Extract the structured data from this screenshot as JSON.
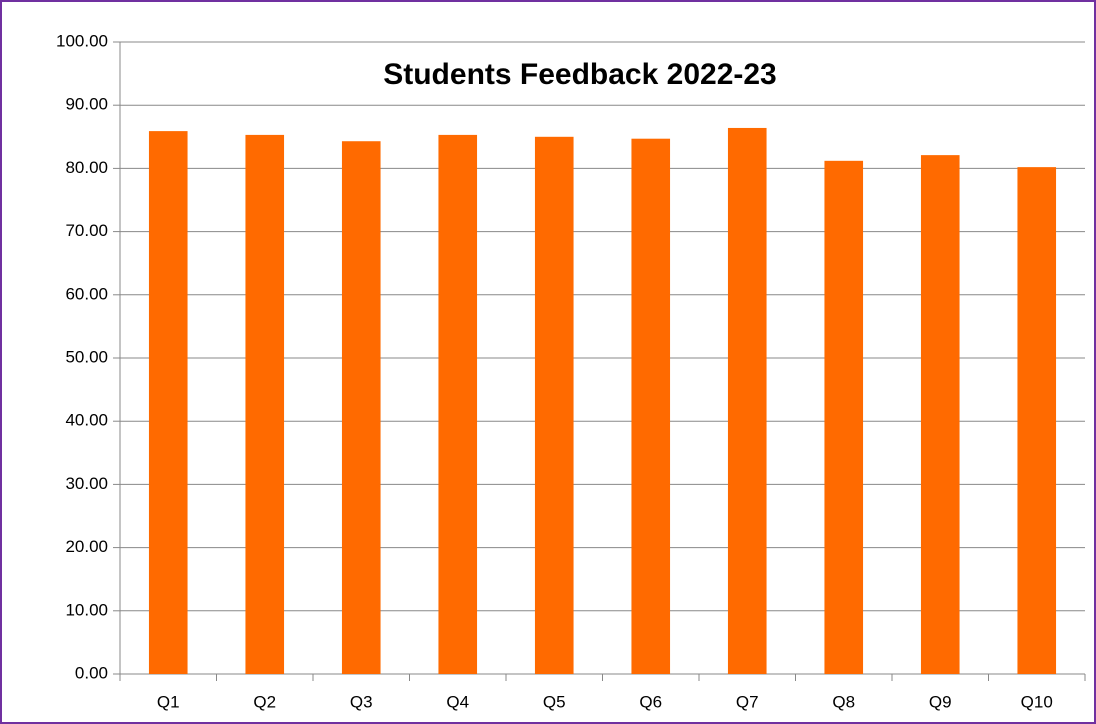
{
  "chart_data": {
    "type": "bar",
    "title": "Students Feedback 2022-23",
    "categories": [
      "Q1",
      "Q2",
      "Q3",
      "Q4",
      "Q5",
      "Q6",
      "Q7",
      "Q8",
      "Q9",
      "Q10"
    ],
    "values": [
      85.9,
      85.3,
      84.3,
      85.3,
      85.0,
      84.7,
      86.4,
      81.2,
      82.1,
      80.2
    ],
    "color": "#ff6a00",
    "ylim": [
      0,
      100
    ],
    "yticks": [
      {
        "value": 0,
        "label": "0.00"
      },
      {
        "value": 10,
        "label": "10.00"
      },
      {
        "value": 20,
        "label": "20.00"
      },
      {
        "value": 30,
        "label": "30.00"
      },
      {
        "value": 40,
        "label": "40.00"
      },
      {
        "value": 50,
        "label": "50.00"
      },
      {
        "value": 60,
        "label": "60.00"
      },
      {
        "value": 70,
        "label": "70.00"
      },
      {
        "value": 80,
        "label": "80.00"
      },
      {
        "value": 90,
        "label": "90.00"
      },
      {
        "value": 100,
        "label": "100.00"
      }
    ],
    "grid": true
  }
}
